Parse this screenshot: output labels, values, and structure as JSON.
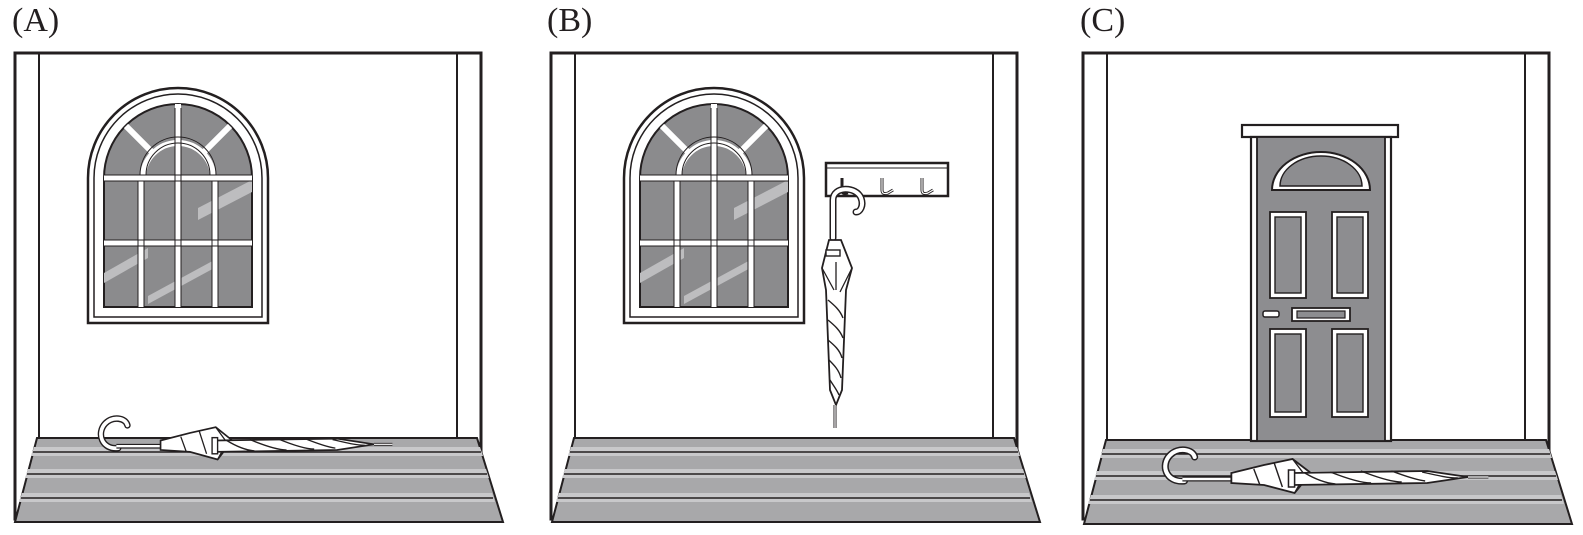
{
  "panels": [
    {
      "label": "(A)",
      "wall_item": "arched-window",
      "umbrella": "lying-on-floor"
    },
    {
      "label": "(B)",
      "wall_item": "arched-window",
      "extra": "coat-hook-rack",
      "umbrella": "hanging-on-hook"
    },
    {
      "label": "(C)",
      "wall_item": "front-door",
      "umbrella": "lying-on-floor"
    }
  ],
  "colors": {
    "line": "#231f20",
    "glass": "#8b8b8d",
    "glass_shine": "#bdbdbf",
    "floor": "#a8a8aa",
    "floor_light": "#c8c8ca",
    "door": "#8d8d90",
    "wall": "#ffffff"
  }
}
